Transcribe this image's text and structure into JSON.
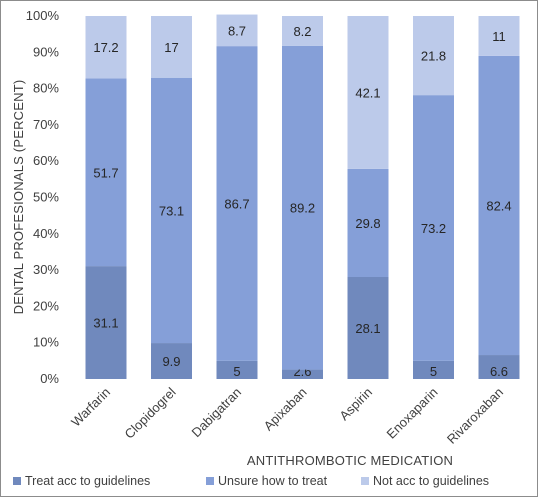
{
  "chart_data": {
    "type": "bar",
    "stacked": true,
    "percent_axis": true,
    "categories": [
      "Warfarin",
      "Clopidogrel",
      "Dabigatran",
      "Apixaban",
      "Aspirin",
      "Enoxaparin",
      "Rivaroxaban"
    ],
    "series": [
      {
        "name": "Treat acc to guidelines",
        "color": "#7089bd",
        "values": [
          31.1,
          9.9,
          5,
          2.6,
          28.1,
          5,
          6.6
        ]
      },
      {
        "name": "Unsure how to treat",
        "color": "#859fd8",
        "values": [
          51.7,
          73.1,
          86.7,
          89.2,
          29.8,
          73.2,
          82.4
        ]
      },
      {
        "name": "Not acc to guidelines",
        "color": "#bccaea",
        "values": [
          17.2,
          17,
          8.7,
          8.2,
          42.1,
          21.8,
          11
        ]
      }
    ],
    "data_labels": [
      [
        "31.1",
        "9.9",
        "5",
        "2.6",
        "28.1",
        "5",
        "6.6"
      ],
      [
        "51.7",
        "73.1",
        "86.7",
        "89.2",
        "29.8",
        "73.2",
        "82.4"
      ],
      [
        "17.2",
        "17",
        "8.7",
        "8.2",
        "42.1",
        "21.8",
        "11"
      ]
    ],
    "y_ticks": [
      "0%",
      "10%",
      "20%",
      "30%",
      "40%",
      "50%",
      "60%",
      "70%",
      "80%",
      "90%",
      "100%"
    ],
    "ylim": [
      0,
      100
    ],
    "xlabel": "ANTITHROMBOTIC MEDICATION",
    "ylabel": "DENTAL PROFESIONALS (PERCENT)",
    "title": "",
    "legend_position": "bottom",
    "grid": false
  }
}
